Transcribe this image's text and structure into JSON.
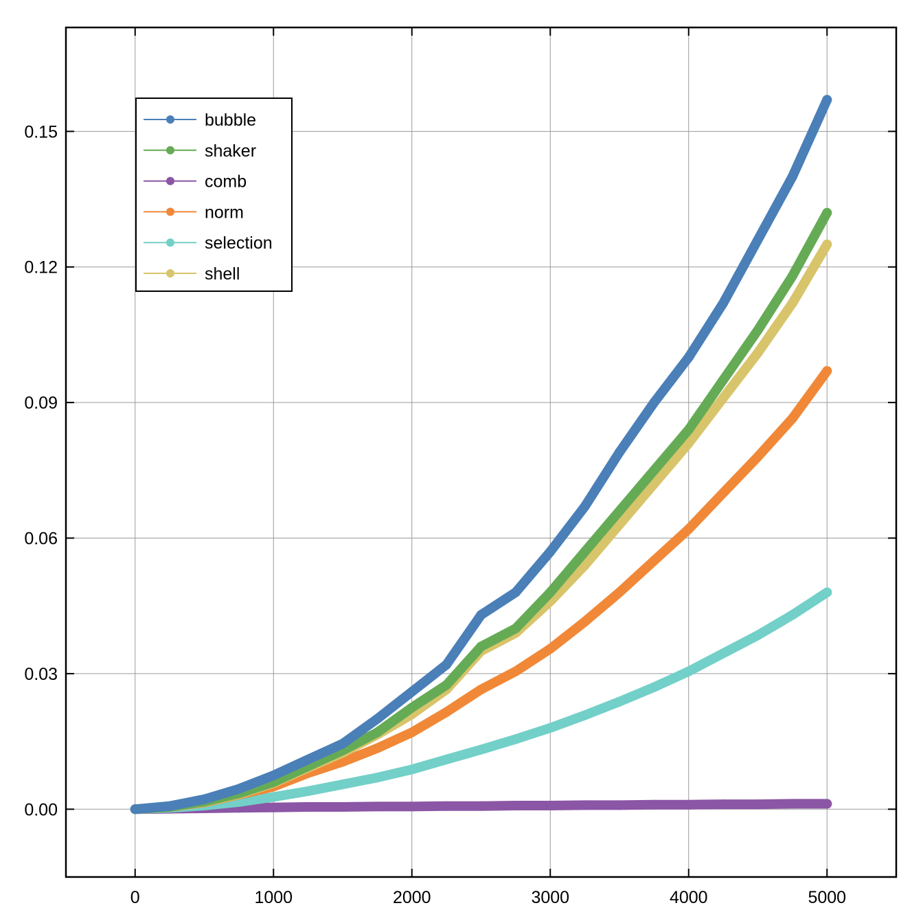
{
  "chart_data": {
    "type": "line",
    "title": "",
    "xlabel": "",
    "ylabel": "",
    "xlim": [
      -500,
      5500
    ],
    "ylim": [
      -0.015,
      0.173
    ],
    "x_ticks": [
      0,
      1000,
      2000,
      3000,
      4000,
      5000
    ],
    "x_tick_labels": [
      "0",
      "1000",
      "2000",
      "3000",
      "4000",
      "5000"
    ],
    "y_ticks": [
      0.0,
      0.03,
      0.06,
      0.09,
      0.12,
      0.15
    ],
    "y_tick_labels": [
      "0.00",
      "0.03",
      "0.06",
      "0.09",
      "0.12",
      "0.15"
    ],
    "grid": true,
    "legend_position": "upper-left",
    "x": [
      0,
      250,
      500,
      750,
      1000,
      1250,
      1500,
      1750,
      2000,
      2250,
      2500,
      2750,
      3000,
      3250,
      3500,
      3750,
      4000,
      4250,
      4500,
      4750,
      5000
    ],
    "series": [
      {
        "name": "bubble",
        "color": "#4a7fb8",
        "values": [
          0.0,
          0.0007,
          0.0022,
          0.0045,
          0.0075,
          0.011,
          0.0145,
          0.02,
          0.026,
          0.032,
          0.043,
          0.048,
          0.057,
          0.067,
          0.079,
          0.09,
          0.1,
          0.112,
          0.126,
          0.14,
          0.157
        ]
      },
      {
        "name": "shaker",
        "color": "#65ab55",
        "values": [
          0.0,
          0.0005,
          0.0017,
          0.0035,
          0.006,
          0.0095,
          0.013,
          0.017,
          0.0225,
          0.0275,
          0.036,
          0.04,
          0.048,
          0.057,
          0.066,
          0.075,
          0.084,
          0.095,
          0.106,
          0.118,
          0.132
        ]
      },
      {
        "name": "comb",
        "color": "#8b56a5",
        "values": [
          0.0,
          0.0001,
          0.0002,
          0.0003,
          0.0004,
          0.0005,
          0.0005,
          0.0006,
          0.0006,
          0.0007,
          0.0007,
          0.0008,
          0.0008,
          0.0009,
          0.0009,
          0.001,
          0.001,
          0.0011,
          0.0011,
          0.0012,
          0.0012
        ]
      },
      {
        "name": "norm",
        "color": "#f08838",
        "values": [
          0.0,
          0.0005,
          0.0015,
          0.0032,
          0.005,
          0.008,
          0.0105,
          0.0135,
          0.017,
          0.0215,
          0.0265,
          0.0305,
          0.0355,
          0.0415,
          0.048,
          0.055,
          0.062,
          0.07,
          0.078,
          0.0865,
          0.097
        ]
      },
      {
        "name": "selection",
        "color": "#72d0c8",
        "values": [
          0.0,
          0.0003,
          0.0008,
          0.0016,
          0.0027,
          0.004,
          0.0055,
          0.007,
          0.0088,
          0.011,
          0.0132,
          0.0155,
          0.018,
          0.0208,
          0.0238,
          0.027,
          0.0305,
          0.0345,
          0.0385,
          0.043,
          0.048
        ]
      },
      {
        "name": "shell",
        "color": "#d8c46a",
        "values": [
          0.0,
          0.0005,
          0.0016,
          0.0033,
          0.0058,
          0.0092,
          0.0125,
          0.0165,
          0.021,
          0.0265,
          0.035,
          0.039,
          0.046,
          0.054,
          0.063,
          0.072,
          0.081,
          0.091,
          0.101,
          0.112,
          0.125
        ]
      }
    ]
  }
}
